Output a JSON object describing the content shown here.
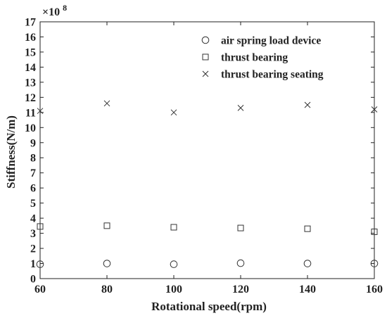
{
  "chart_data": {
    "type": "scatter",
    "xlabel": "Rotational speed(rpm)",
    "ylabel": "Stiffness(N/m)",
    "y_multiplier_label": "×10",
    "y_multiplier_exponent": "8",
    "x_ticks": [
      "60",
      "80",
      "100",
      "120",
      "140",
      "160"
    ],
    "y_ticks": [
      "0",
      "1",
      "2",
      "3",
      "4",
      "5",
      "6",
      "7",
      "8",
      "9",
      "10",
      "11",
      "12",
      "13",
      "14",
      "15",
      "16",
      "17"
    ],
    "xlim": [
      60,
      160
    ],
    "ylim": [
      0,
      17
    ],
    "grid": false,
    "legend_position": "top-right",
    "x": [
      60,
      80,
      100,
      120,
      140,
      160
    ],
    "series": [
      {
        "name": "air spring load device",
        "marker": "circle",
        "values": [
          0.95,
          1.0,
          0.95,
          1.02,
          1.0,
          1.0
        ]
      },
      {
        "name": "thrust bearing",
        "marker": "square",
        "values": [
          3.45,
          3.5,
          3.4,
          3.35,
          3.3,
          3.1
        ]
      },
      {
        "name": "thrust bearing seating",
        "marker": "cross",
        "values": [
          11.1,
          11.6,
          11.0,
          11.3,
          11.5,
          11.2
        ]
      }
    ],
    "colors": {
      "marker": "#333333",
      "axis": "#222222"
    }
  }
}
